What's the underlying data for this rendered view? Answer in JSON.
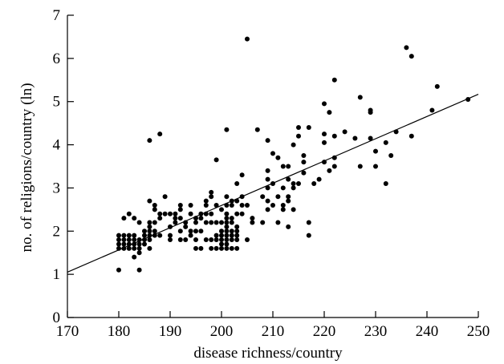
{
  "chart_data": {
    "type": "scatter",
    "title": "",
    "xlabel": "disease richness/country",
    "ylabel": "no. of religions/country (ln)",
    "xlim": [
      170,
      250
    ],
    "ylim": [
      0,
      7
    ],
    "x_ticks": [
      170,
      180,
      190,
      200,
      210,
      220,
      230,
      240,
      250
    ],
    "y_ticks": [
      0,
      1,
      2,
      3,
      4,
      5,
      6,
      7
    ],
    "grid": false,
    "legend": "none",
    "marker_color": "#000000",
    "trendline": {
      "x": [
        170,
        250
      ],
      "y": [
        1.05,
        5.17
      ]
    },
    "points": [
      [
        180,
        1.1
      ],
      [
        180,
        1.6
      ],
      [
        180,
        1.7
      ],
      [
        180,
        1.8
      ],
      [
        180,
        1.9
      ],
      [
        181,
        1.6
      ],
      [
        181,
        1.7
      ],
      [
        181,
        1.8
      ],
      [
        181,
        1.9
      ],
      [
        181,
        2.3
      ],
      [
        182,
        1.6
      ],
      [
        182,
        1.7
      ],
      [
        182,
        1.8
      ],
      [
        182,
        1.9
      ],
      [
        182,
        2.4
      ],
      [
        183,
        1.4
      ],
      [
        183,
        1.6
      ],
      [
        183,
        1.7
      ],
      [
        183,
        1.8
      ],
      [
        183,
        1.9
      ],
      [
        183,
        2.3
      ],
      [
        184,
        1.1
      ],
      [
        184,
        1.5
      ],
      [
        184,
        1.6
      ],
      [
        184,
        1.7
      ],
      [
        184,
        1.8
      ],
      [
        184,
        2.2
      ],
      [
        185,
        1.7
      ],
      [
        185,
        1.8
      ],
      [
        185,
        1.9
      ],
      [
        185,
        2.0
      ],
      [
        186,
        1.6
      ],
      [
        186,
        1.8
      ],
      [
        186,
        1.9
      ],
      [
        186,
        2.0
      ],
      [
        186,
        2.1
      ],
      [
        186,
        2.2
      ],
      [
        186,
        2.7
      ],
      [
        186,
        4.1
      ],
      [
        187,
        1.9
      ],
      [
        187,
        2.0
      ],
      [
        187,
        2.2
      ],
      [
        187,
        2.5
      ],
      [
        187,
        2.6
      ],
      [
        188,
        1.9
      ],
      [
        188,
        2.3
      ],
      [
        188,
        2.4
      ],
      [
        188,
        4.25
      ],
      [
        189,
        2.4
      ],
      [
        189,
        2.8
      ],
      [
        190,
        2.1
      ],
      [
        190,
        2.4
      ],
      [
        190,
        1.8
      ],
      [
        190,
        1.9
      ],
      [
        191,
        2.2
      ],
      [
        191,
        2.3
      ],
      [
        191,
        2.4
      ],
      [
        192,
        1.8
      ],
      [
        192,
        2.0
      ],
      [
        192,
        2.3
      ],
      [
        192,
        2.5
      ],
      [
        192,
        2.6
      ],
      [
        193,
        1.8
      ],
      [
        193,
        2.1
      ],
      [
        193,
        2.2
      ],
      [
        194,
        1.9
      ],
      [
        194,
        2.0
      ],
      [
        194,
        2.4
      ],
      [
        194,
        2.6
      ],
      [
        195,
        1.6
      ],
      [
        195,
        1.8
      ],
      [
        195,
        2.0
      ],
      [
        195,
        2.2
      ],
      [
        195,
        2.3
      ],
      [
        196,
        1.6
      ],
      [
        196,
        2.0
      ],
      [
        196,
        2.3
      ],
      [
        196,
        2.4
      ],
      [
        197,
        1.8
      ],
      [
        197,
        2.2
      ],
      [
        197,
        2.4
      ],
      [
        197,
        2.6
      ],
      [
        197,
        2.7
      ],
      [
        198,
        1.6
      ],
      [
        198,
        1.8
      ],
      [
        198,
        2.2
      ],
      [
        198,
        2.4
      ],
      [
        198,
        2.8
      ],
      [
        198,
        2.9
      ],
      [
        199,
        1.6
      ],
      [
        199,
        1.8
      ],
      [
        199,
        1.9
      ],
      [
        199,
        2.2
      ],
      [
        199,
        2.6
      ],
      [
        199,
        3.65
      ],
      [
        200,
        1.6
      ],
      [
        200,
        1.7
      ],
      [
        200,
        1.8
      ],
      [
        200,
        1.9
      ],
      [
        200,
        2.0
      ],
      [
        200,
        2.2
      ],
      [
        200,
        2.5
      ],
      [
        201,
        1.6
      ],
      [
        201,
        1.7
      ],
      [
        201,
        1.8
      ],
      [
        201,
        1.9
      ],
      [
        201,
        2.0
      ],
      [
        201,
        2.1
      ],
      [
        201,
        2.2
      ],
      [
        201,
        2.3
      ],
      [
        201,
        2.4
      ],
      [
        201,
        2.6
      ],
      [
        201,
        2.8
      ],
      [
        201,
        4.35
      ],
      [
        202,
        1.6
      ],
      [
        202,
        1.8
      ],
      [
        202,
        1.9
      ],
      [
        202,
        2.0
      ],
      [
        202,
        2.2
      ],
      [
        202,
        2.3
      ],
      [
        202,
        2.6
      ],
      [
        202,
        2.7
      ],
      [
        203,
        1.6
      ],
      [
        203,
        1.8
      ],
      [
        203,
        1.9
      ],
      [
        203,
        2.0
      ],
      [
        203,
        2.1
      ],
      [
        203,
        2.4
      ],
      [
        203,
        2.7
      ],
      [
        203,
        3.1
      ],
      [
        204,
        2.4
      ],
      [
        204,
        2.6
      ],
      [
        204,
        2.8
      ],
      [
        204,
        3.3
      ],
      [
        205,
        1.8
      ],
      [
        205,
        2.6
      ],
      [
        205,
        6.45
      ],
      [
        206,
        2.2
      ],
      [
        206,
        2.3
      ],
      [
        207,
        4.35
      ],
      [
        208,
        2.2
      ],
      [
        208,
        2.8
      ],
      [
        209,
        2.5
      ],
      [
        209,
        2.7
      ],
      [
        209,
        3.0
      ],
      [
        209,
        3.2
      ],
      [
        209,
        3.4
      ],
      [
        209,
        4.1
      ],
      [
        210,
        2.6
      ],
      [
        210,
        3.1
      ],
      [
        210,
        3.8
      ],
      [
        211,
        2.2
      ],
      [
        211,
        2.8
      ],
      [
        211,
        3.7
      ],
      [
        212,
        2.5
      ],
      [
        212,
        2.6
      ],
      [
        212,
        3.0
      ],
      [
        212,
        3.5
      ],
      [
        213,
        2.1
      ],
      [
        213,
        2.7
      ],
      [
        213,
        2.8
      ],
      [
        213,
        3.2
      ],
      [
        213,
        3.5
      ],
      [
        214,
        2.5
      ],
      [
        214,
        3.0
      ],
      [
        214,
        3.1
      ],
      [
        214,
        4.0
      ],
      [
        215,
        3.1
      ],
      [
        215,
        4.2
      ],
      [
        215,
        4.4
      ],
      [
        216,
        3.35
      ],
      [
        216,
        3.6
      ],
      [
        216,
        3.75
      ],
      [
        217,
        1.9
      ],
      [
        217,
        2.2
      ],
      [
        217,
        4.4
      ],
      [
        218,
        3.1
      ],
      [
        219,
        3.2
      ],
      [
        220,
        3.6
      ],
      [
        220,
        4.05
      ],
      [
        220,
        4.25
      ],
      [
        220,
        4.95
      ],
      [
        221,
        3.4
      ],
      [
        221,
        4.75
      ],
      [
        222,
        3.5
      ],
      [
        222,
        3.7
      ],
      [
        222,
        4.2
      ],
      [
        222,
        5.5
      ],
      [
        224,
        4.3
      ],
      [
        226,
        4.15
      ],
      [
        227,
        3.5
      ],
      [
        227,
        5.1
      ],
      [
        229,
        4.15
      ],
      [
        229,
        4.75
      ],
      [
        229,
        4.8
      ],
      [
        230,
        3.5
      ],
      [
        230,
        3.85
      ],
      [
        232,
        3.1
      ],
      [
        232,
        4.05
      ],
      [
        233,
        3.75
      ],
      [
        234,
        4.3
      ],
      [
        236,
        6.25
      ],
      [
        237,
        4.2
      ],
      [
        237,
        6.05
      ],
      [
        241,
        4.8
      ],
      [
        242,
        5.35
      ],
      [
        248,
        5.05
      ]
    ]
  }
}
